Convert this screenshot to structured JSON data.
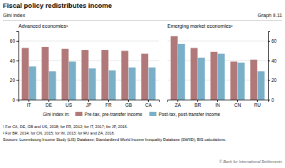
{
  "chart_data": [
    {
      "type": "bar",
      "title": "Fiscal policy redistributes income",
      "ylabel": "Gini index",
      "subtitle": "Advanced economies¹",
      "categories": [
        "IT",
        "DE",
        "US",
        "JP",
        "FR",
        "GB",
        "CA"
      ],
      "series": [
        {
          "name": "Pre-tax, pre-transfer income",
          "color": "#b07878",
          "values": [
            53,
            54,
            52,
            51,
            51,
            50,
            47
          ]
        },
        {
          "name": "Post-tax, post-transfer income",
          "color": "#7aafc8",
          "values": [
            34,
            29,
            39,
            32,
            30,
            33,
            33
          ]
        }
      ],
      "ylim": [
        0,
        70
      ],
      "yticks": [
        0,
        20,
        40,
        60
      ],
      "grid": true,
      "legend": "bottom",
      "annotations": [
        "Graph II.11",
        "Gini index in:",
        "¹ For CA, DE, GB and US, 2018; for FR, 2012; for IT, 2017; for JP, 2015.",
        "Sources: Luxembourg Income Study (LIS) Database; Standardized World Income Inequality Database (SWIID); BIS calculations.",
        "© Bank for International Settlements"
      ]
    },
    {
      "type": "bar",
      "subtitle": "Emerging market economies²",
      "categories": [
        "ZA",
        "BR",
        "IN",
        "CN",
        "RU"
      ],
      "series": [
        {
          "color": "#b07878",
          "values": [
            65,
            53,
            49,
            39,
            41
          ]
        },
        {
          "color": "#7aafc8",
          "values": [
            57,
            43,
            47,
            38,
            29
          ]
        }
      ],
      "ylim": [
        0,
        70
      ],
      "yticks": [
        0,
        20,
        40,
        60
      ],
      "grid": true,
      "annotations": [
        "² For BR, 2014; for CN, 2015; for IN, 2013; for RU and ZA, 2018."
      ]
    }
  ]
}
